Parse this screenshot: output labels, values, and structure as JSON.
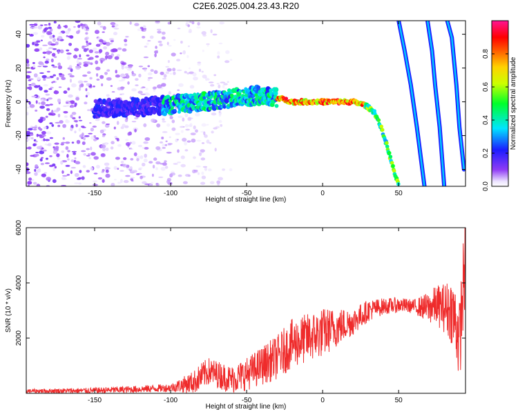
{
  "chart_data": [
    {
      "type": "heatmap",
      "title": "C2E6.2025.004.23.43.R20",
      "xlabel": "Height of straight line (km)",
      "ylabel": "Frequency (Hz)",
      "xlim": [
        -195,
        94
      ],
      "ylim": [
        -50,
        48
      ],
      "x_ticks": [
        -150,
        -100,
        -50,
        0,
        50
      ],
      "y_ticks": [
        -40,
        -20,
        0,
        20,
        40
      ],
      "grid": false,
      "colorbar": {
        "label": "Normalized spectral amplitude",
        "range": [
          0.0,
          1.0
        ],
        "ticks": [
          0.0,
          0.2,
          0.4,
          0.6,
          0.8
        ]
      },
      "features": {
        "noise_region_x": [
          -195,
          -85
        ],
        "main_trace": [
          {
            "x": -150,
            "y": -4
          },
          {
            "x": -120,
            "y": -3
          },
          {
            "x": -100,
            "y": -2
          },
          {
            "x": -80,
            "y": 0
          },
          {
            "x": -60,
            "y": 2
          },
          {
            "x": -40,
            "y": 4
          },
          {
            "x": -28,
            "y": 2
          },
          {
            "x": -20,
            "y": 0
          },
          {
            "x": 0,
            "y": 0
          },
          {
            "x": 20,
            "y": 0
          },
          {
            "x": 28,
            "y": -2
          },
          {
            "x": 34,
            "y": -6
          },
          {
            "x": 38,
            "y": -14
          },
          {
            "x": 42,
            "y": -25
          },
          {
            "x": 46,
            "y": -38
          },
          {
            "x": 50,
            "y": -50
          }
        ],
        "streaks": [
          [
            {
              "x": 50,
              "y": 48
            },
            {
              "x": 54,
              "y": 30
            },
            {
              "x": 58,
              "y": 10
            },
            {
              "x": 62,
              "y": -15
            },
            {
              "x": 67,
              "y": -50
            }
          ],
          [
            {
              "x": 69,
              "y": 48
            },
            {
              "x": 72,
              "y": 30
            },
            {
              "x": 74,
              "y": 10
            },
            {
              "x": 77,
              "y": -15
            },
            {
              "x": 80,
              "y": -50
            }
          ],
          [
            {
              "x": 82,
              "y": 48
            },
            {
              "x": 85,
              "y": 38
            },
            {
              "x": 88,
              "y": 10
            },
            {
              "x": 90,
              "y": -15
            },
            {
              "x": 93,
              "y": -40
            }
          ]
        ]
      }
    },
    {
      "type": "line",
      "title": "",
      "xlabel": "Height of straight line (km)",
      "ylabel": "SNR (10 * v/v)",
      "xlim": [
        -195,
        94
      ],
      "ylim": [
        0,
        6000
      ],
      "x_ticks": [
        -150,
        -100,
        -50,
        0,
        50
      ],
      "y_ticks": [
        2000,
        4000,
        6000
      ],
      "grid": false,
      "series": [
        {
          "color": "#ef2b2b",
          "trend": {
            "x": [
              -195,
              -150,
              -120,
              -100,
              -85,
              -75,
              -60,
              -50,
              -40,
              -30,
              -20,
              -10,
              0,
              10,
              20,
              30,
              40,
              50,
              60,
              70,
              75,
              80,
              85,
              88,
              90,
              92,
              94
            ],
            "y": [
              80,
              100,
              150,
              200,
              400,
              800,
              500,
              700,
              1000,
              1300,
              1800,
              2000,
              2200,
              2400,
              2600,
              3000,
              3150,
              3200,
              3150,
              3100,
              3200,
              3100,
              3000,
              2500,
              1800,
              3500,
              5000
            ]
          },
          "noise_amplitude": {
            "x": [
              -195,
              -100,
              -80,
              -60,
              -40,
              -20,
              0,
              20,
              40,
              60,
              80,
              94
            ],
            "y": [
              70,
              150,
              500,
              500,
              700,
              900,
              900,
              500,
              300,
              250,
              900,
              1800
            ]
          }
        }
      ]
    }
  ]
}
